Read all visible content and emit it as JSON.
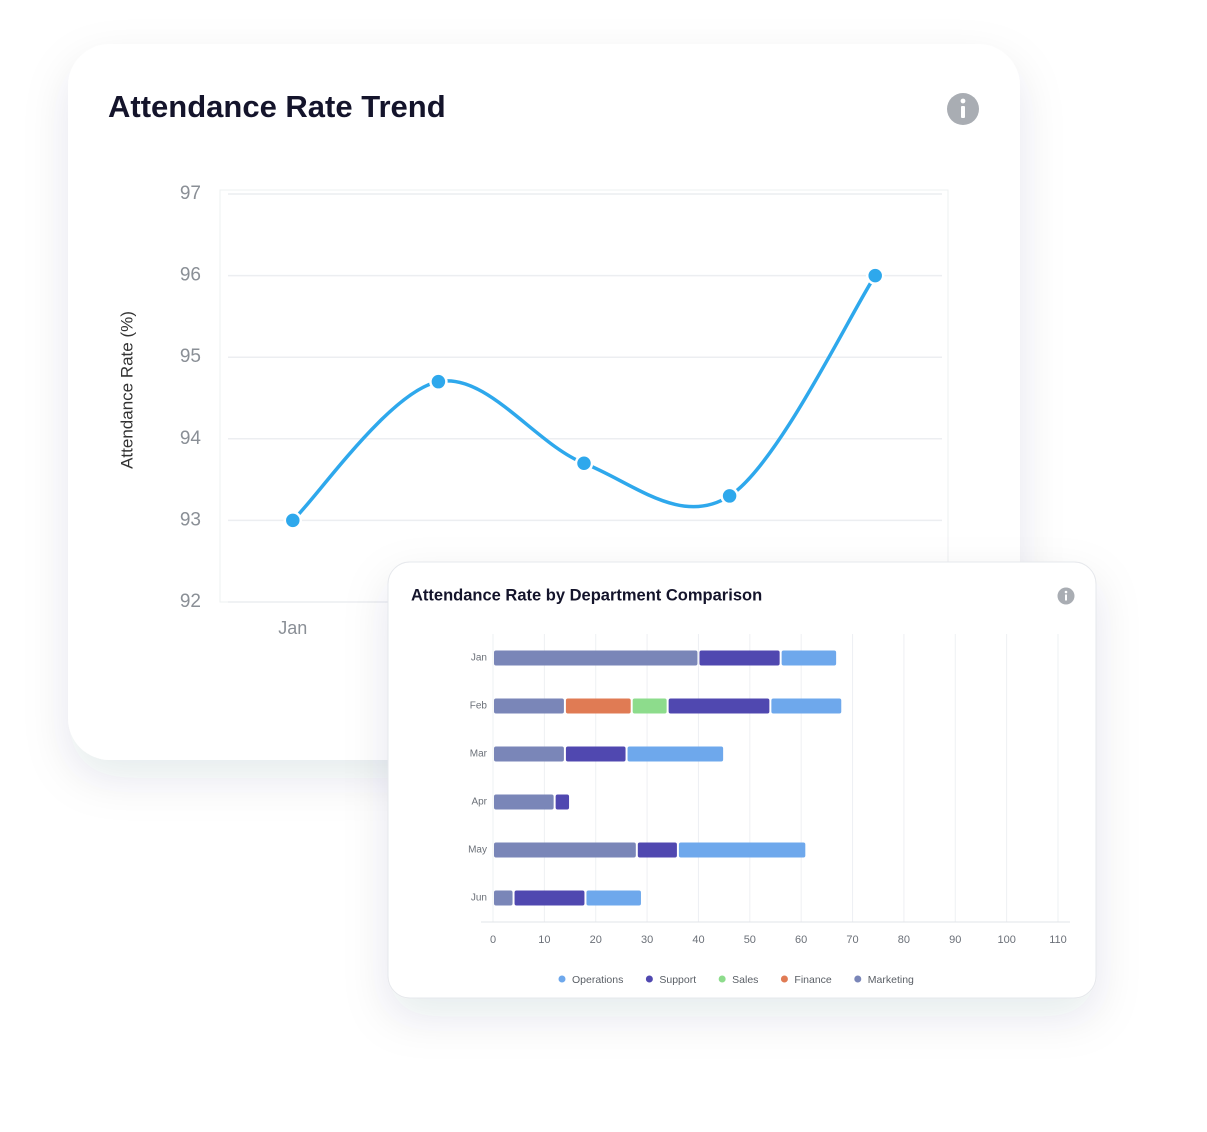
{
  "chart_data": [
    {
      "type": "line",
      "title": "Attendance Rate Trend",
      "y_label": "Attendance Rate (%)",
      "categories": [
        "Jan",
        null,
        null,
        null,
        null
      ],
      "values": [
        93.0,
        94.7,
        93.7,
        93.3,
        96.0
      ],
      "color": "#2ea8ec",
      "ylim": [
        92,
        97
      ],
      "yticks": [
        92,
        93,
        94,
        95,
        96,
        97
      ],
      "grid": true
    },
    {
      "type": "bar",
      "orientation": "horizontal",
      "stacked": true,
      "title": "Attendance Rate by Department Comparison",
      "categories": [
        "Jan",
        "Feb",
        "Mar",
        "Apr",
        "May",
        "Jun"
      ],
      "series": [
        {
          "name": "Operations",
          "color": "#6ea8ec",
          "values": [
            11,
            14,
            19,
            null,
            25,
            11
          ]
        },
        {
          "name": "Support",
          "color": "#5048b0",
          "values": [
            16,
            20,
            12,
            3,
            8,
            14
          ]
        },
        {
          "name": "Sales",
          "color": "#8ddc8c",
          "values": [
            null,
            7,
            null,
            null,
            null,
            null
          ]
        },
        {
          "name": "Finance",
          "color": "#e07b54",
          "values": [
            null,
            13,
            null,
            null,
            null,
            null
          ]
        },
        {
          "name": "Marketing",
          "color": "#7a86b8",
          "values": [
            40,
            14,
            14,
            12,
            28,
            4
          ]
        }
      ],
      "xlim": [
        0,
        110
      ],
      "xticks": [
        0,
        10,
        20,
        30,
        40,
        50,
        60,
        70,
        80,
        90,
        100,
        110
      ],
      "grid": true,
      "legend": "bottom"
    }
  ]
}
